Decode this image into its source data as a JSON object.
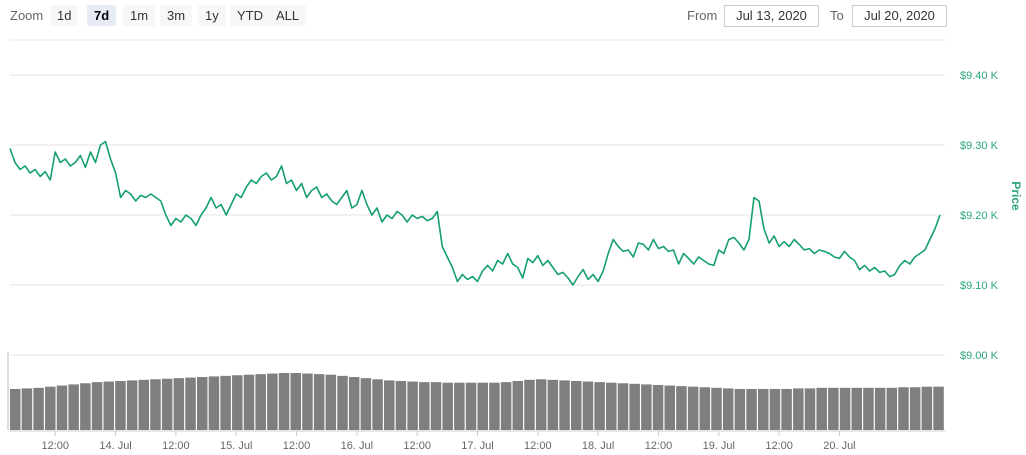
{
  "toolbar": {
    "zoom_label": "Zoom",
    "zoom_buttons": [
      "1d",
      "7d",
      "1m",
      "3m",
      "1y",
      "YTD",
      "ALL"
    ],
    "active_zoom": "7d",
    "from_label": "From",
    "from_value": "Jul 13, 2020",
    "to_label": "To",
    "to_value": "Jul 20, 2020"
  },
  "colors": {
    "price_line": "#16a06b",
    "volume_bar": "#7f7f7f",
    "axis_text": "#2aa57a",
    "grid": "#e6e6e6"
  },
  "chart_data": {
    "type": "line",
    "ylabel": "Price",
    "ylim": [
      9000,
      9450
    ],
    "y_ticks": [
      {
        "value": 9000,
        "label": "$9.00 K"
      },
      {
        "value": 9100,
        "label": "$9.10 K"
      },
      {
        "value": 9200,
        "label": "$9.20 K"
      },
      {
        "value": 9300,
        "label": "$9.30 K"
      },
      {
        "value": 9400,
        "label": "$9.40 K"
      }
    ],
    "x_range_hours": [
      -21,
      165
    ],
    "x_ticks": [
      {
        "label": "12:00"
      },
      {
        "label": "14. Jul"
      },
      {
        "label": "12:00"
      },
      {
        "label": "15. Jul"
      },
      {
        "label": "12:00"
      },
      {
        "label": "16. Jul"
      },
      {
        "label": "12:00"
      },
      {
        "label": "17. Jul"
      },
      {
        "label": "12:00"
      },
      {
        "label": "18. Jul"
      },
      {
        "label": "12:00"
      },
      {
        "label": "19. Jul"
      },
      {
        "label": "12:00"
      },
      {
        "label": "20. Jul"
      }
    ],
    "x_tick_hours": [
      -12,
      0,
      12,
      24,
      36,
      48,
      60,
      72,
      84,
      96,
      108,
      120,
      132,
      144
    ],
    "series": [
      {
        "points": [
          [
            -21,
            9295
          ],
          [
            -20,
            9275
          ],
          [
            -19,
            9265
          ],
          [
            -18,
            9270
          ],
          [
            -17,
            9260
          ],
          [
            -16,
            9265
          ],
          [
            -15,
            9255
          ],
          [
            -14,
            9262
          ],
          [
            -13,
            9250
          ],
          [
            -12,
            9290
          ],
          [
            -11,
            9275
          ],
          [
            -10,
            9280
          ],
          [
            -9,
            9270
          ],
          [
            -8,
            9275
          ],
          [
            -7,
            9285
          ],
          [
            -6,
            9268
          ],
          [
            -5,
            9290
          ],
          [
            -4,
            9275
          ],
          [
            -3,
            9300
          ],
          [
            -2,
            9305
          ],
          [
            -1,
            9280
          ],
          [
            0,
            9260
          ],
          [
            1,
            9225
          ],
          [
            2,
            9235
          ],
          [
            3,
            9230
          ],
          [
            4,
            9220
          ],
          [
            5,
            9228
          ],
          [
            6,
            9225
          ],
          [
            7,
            9230
          ],
          [
            8,
            9225
          ],
          [
            9,
            9220
          ],
          [
            10,
            9200
          ],
          [
            11,
            9185
          ],
          [
            12,
            9195
          ],
          [
            13,
            9190
          ],
          [
            14,
            9200
          ],
          [
            15,
            9195
          ],
          [
            16,
            9185
          ],
          [
            17,
            9200
          ],
          [
            18,
            9210
          ],
          [
            19,
            9225
          ],
          [
            20,
            9210
          ],
          [
            21,
            9215
          ],
          [
            22,
            9200
          ],
          [
            23,
            9215
          ],
          [
            24,
            9230
          ],
          [
            25,
            9225
          ],
          [
            26,
            9240
          ],
          [
            27,
            9250
          ],
          [
            28,
            9245
          ],
          [
            29,
            9255
          ],
          [
            30,
            9260
          ],
          [
            31,
            9250
          ],
          [
            32,
            9255
          ],
          [
            33,
            9270
          ],
          [
            34,
            9245
          ],
          [
            35,
            9250
          ],
          [
            36,
            9235
          ],
          [
            37,
            9245
          ],
          [
            38,
            9225
          ],
          [
            39,
            9235
          ],
          [
            40,
            9240
          ],
          [
            41,
            9225
          ],
          [
            42,
            9230
          ],
          [
            43,
            9220
          ],
          [
            44,
            9215
          ],
          [
            45,
            9225
          ],
          [
            46,
            9235
          ],
          [
            47,
            9210
          ],
          [
            48,
            9215
          ],
          [
            49,
            9235
          ],
          [
            50,
            9215
          ],
          [
            51,
            9200
          ],
          [
            52,
            9210
          ],
          [
            53,
            9190
          ],
          [
            54,
            9200
          ],
          [
            55,
            9195
          ],
          [
            56,
            9205
          ],
          [
            57,
            9200
          ],
          [
            58,
            9190
          ],
          [
            59,
            9200
          ],
          [
            60,
            9195
          ],
          [
            61,
            9198
          ],
          [
            62,
            9192
          ],
          [
            63,
            9195
          ],
          [
            64,
            9205
          ],
          [
            65,
            9155
          ],
          [
            66,
            9140
          ],
          [
            67,
            9125
          ],
          [
            68,
            9105
          ],
          [
            69,
            9115
          ],
          [
            70,
            9108
          ],
          [
            71,
            9112
          ],
          [
            72,
            9105
          ],
          [
            73,
            9120
          ],
          [
            74,
            9128
          ],
          [
            75,
            9120
          ],
          [
            76,
            9135
          ],
          [
            77,
            9130
          ],
          [
            78,
            9145
          ],
          [
            79,
            9130
          ],
          [
            80,
            9125
          ],
          [
            81,
            9110
          ],
          [
            82,
            9138
          ],
          [
            83,
            9132
          ],
          [
            84,
            9142
          ],
          [
            85,
            9128
          ],
          [
            86,
            9135
          ],
          [
            87,
            9125
          ],
          [
            88,
            9115
          ],
          [
            89,
            9118
          ],
          [
            90,
            9110
          ],
          [
            91,
            9100
          ],
          [
            92,
            9112
          ],
          [
            93,
            9122
          ],
          [
            94,
            9108
          ],
          [
            95,
            9115
          ],
          [
            96,
            9105
          ],
          [
            97,
            9120
          ],
          [
            98,
            9145
          ],
          [
            99,
            9165
          ],
          [
            100,
            9155
          ],
          [
            101,
            9148
          ],
          [
            102,
            9150
          ],
          [
            103,
            9140
          ],
          [
            104,
            9160
          ],
          [
            105,
            9158
          ],
          [
            106,
            9150
          ],
          [
            107,
            9165
          ],
          [
            108,
            9152
          ],
          [
            109,
            9155
          ],
          [
            110,
            9148
          ],
          [
            111,
            9150
          ],
          [
            112,
            9130
          ],
          [
            113,
            9145
          ],
          [
            114,
            9138
          ],
          [
            115,
            9130
          ],
          [
            116,
            9140
          ],
          [
            117,
            9135
          ],
          [
            118,
            9130
          ],
          [
            119,
            9128
          ],
          [
            120,
            9150
          ],
          [
            121,
            9145
          ],
          [
            122,
            9165
          ],
          [
            123,
            9168
          ],
          [
            124,
            9160
          ],
          [
            125,
            9150
          ],
          [
            126,
            9165
          ],
          [
            127,
            9225
          ],
          [
            128,
            9220
          ],
          [
            129,
            9180
          ],
          [
            130,
            9160
          ],
          [
            131,
            9170
          ],
          [
            132,
            9155
          ],
          [
            133,
            9162
          ],
          [
            134,
            9155
          ],
          [
            135,
            9165
          ],
          [
            136,
            9158
          ],
          [
            137,
            9150
          ],
          [
            138,
            9152
          ],
          [
            139,
            9145
          ],
          [
            140,
            9150
          ],
          [
            141,
            9148
          ],
          [
            142,
            9145
          ],
          [
            143,
            9140
          ],
          [
            144,
            9138
          ],
          [
            145,
            9148
          ],
          [
            146,
            9140
          ],
          [
            147,
            9135
          ],
          [
            148,
            9122
          ],
          [
            149,
            9128
          ],
          [
            150,
            9120
          ],
          [
            151,
            9125
          ],
          [
            152,
            9118
          ],
          [
            153,
            9120
          ],
          [
            154,
            9112
          ],
          [
            155,
            9115
          ],
          [
            156,
            9128
          ],
          [
            157,
            9135
          ],
          [
            158,
            9130
          ],
          [
            159,
            9140
          ],
          [
            160,
            9145
          ],
          [
            161,
            9150
          ],
          [
            162,
            9165
          ],
          [
            163,
            9180
          ],
          [
            164,
            9200
          ]
        ]
      }
    ],
    "volume": {
      "values_relative": [
        0.72,
        0.73,
        0.74,
        0.76,
        0.78,
        0.8,
        0.82,
        0.84,
        0.85,
        0.86,
        0.87,
        0.88,
        0.89,
        0.9,
        0.91,
        0.92,
        0.93,
        0.94,
        0.95,
        0.96,
        0.97,
        0.98,
        0.99,
        1.0,
        1.0,
        0.99,
        0.98,
        0.97,
        0.95,
        0.93,
        0.91,
        0.89,
        0.87,
        0.86,
        0.85,
        0.84,
        0.84,
        0.83,
        0.83,
        0.83,
        0.83,
        0.83,
        0.84,
        0.86,
        0.88,
        0.89,
        0.88,
        0.87,
        0.86,
        0.85,
        0.84,
        0.83,
        0.82,
        0.81,
        0.8,
        0.79,
        0.78,
        0.77,
        0.76,
        0.75,
        0.74,
        0.73,
        0.72,
        0.72,
        0.72,
        0.72,
        0.72,
        0.73,
        0.73,
        0.74,
        0.74,
        0.74,
        0.74,
        0.74,
        0.74,
        0.74,
        0.75,
        0.75,
        0.76,
        0.76
      ]
    }
  }
}
